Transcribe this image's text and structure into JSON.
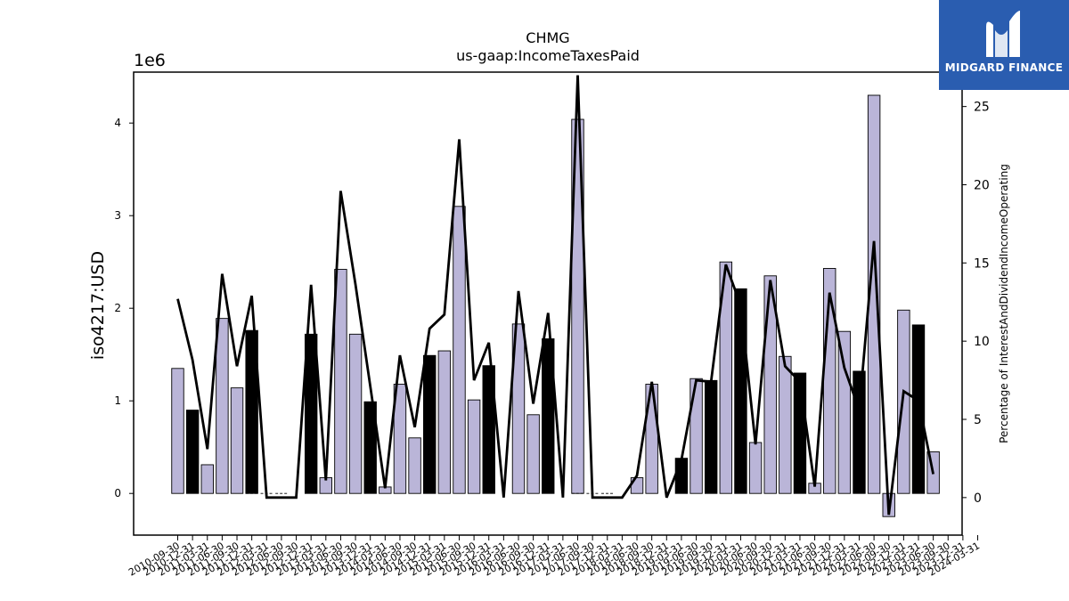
{
  "chart_data": {
    "type": "bar",
    "title": "CHMG",
    "subtitle": "us-gaap:IncomeTaxesPaid",
    "y_multiplier_label": "1e6",
    "ylabel": "iso4217:USD",
    "y2label": "Percentage of InterestAndDividendIncomeOperating",
    "ylim": [
      -450000,
      4550000
    ],
    "y_ticks": [
      0,
      1000000,
      2000000,
      3000000,
      4000000
    ],
    "y_tick_labels": [
      "0",
      "1",
      "2",
      "3",
      "4"
    ],
    "y2lim": [
      -2.4,
      27.2
    ],
    "y2_ticks": [
      0,
      5,
      10,
      15,
      20,
      25
    ],
    "grid": false,
    "categories": [
      "2010-09-30",
      "2010-12-31",
      "2011-03-31",
      "2011-06-30",
      "2011-09-30",
      "2011-12-31",
      "2012-03-31",
      "2012-06-30",
      "2012-09-30",
      "2012-12-31",
      "2013-03-31",
      "2013-06-30",
      "2013-09-30",
      "2013-12-31",
      "2014-03-31",
      "2014-06-30",
      "2014-09-30",
      "2014-12-31",
      "2015-03-31",
      "2015-06-30",
      "2015-09-30",
      "2015-12-31",
      "2016-03-31",
      "2016-06-30",
      "2016-09-30",
      "2016-12-31",
      "2017-03-31",
      "2017-06-30",
      "2017-09-30",
      "2017-12-31",
      "2018-03-31",
      "2018-06-30",
      "2018-09-30",
      "2018-12-31",
      "2019-03-31",
      "2019-06-30",
      "2019-09-30",
      "2019-12-31",
      "2020-03-31",
      "2020-06-30",
      "2020-09-30",
      "2020-12-31",
      "2021-03-31",
      "2021-06-30",
      "2021-09-30",
      "2021-12-31",
      "2022-03-31",
      "2022-06-30",
      "2022-09-30",
      "2022-12-31",
      "2023-03-31",
      "2023-06-30",
      "2023-09-30",
      "2023-12-31",
      "2024-03-31"
    ],
    "x_tick_labels_shown": [
      "2010-09-30",
      "2010-12-31",
      "2011-03-31",
      "2011-06-30",
      "2011-09-30",
      "2011-12-31",
      "2012-03-31",
      "2012-06-30",
      "2012-09-30",
      "2012-12-31",
      "2013-03-31",
      "2013-06-30",
      "2013-09-30",
      "2013-12-31",
      "2014-03-31",
      "2014-06-30",
      "2014-09-30",
      "2014-12-31",
      "2015-03-31",
      "2015-06-30",
      "2015-09-30",
      "2015-12-31",
      "2016-03-31",
      "2016-06-30",
      "2016-09-30",
      "2016-12-31",
      "2017-03-31",
      "2017-06-30",
      "2017-09-30",
      "2017-12-31",
      "2018-03-31",
      "2018-06-30",
      "2018-09-30",
      "2018-12-31",
      "2019-03-31",
      "2019-06-30",
      "2019-09-30",
      "2019-12-31",
      "2020-03-31",
      "2020-06-30",
      "2020-09-30",
      "2020-12-31",
      "2021-03-31",
      "2021-06-30",
      "2021-09-30",
      "2021-12-31",
      "2022-03-31",
      "2022-06-30",
      "2022-09-30",
      "2022-12-31",
      "2023-03-31",
      "2023-06-30",
      "2023-09-30",
      "2023-12-31",
      "2024-03-31"
    ],
    "series": [
      {
        "axis": "left",
        "kind": "bar",
        "values": [
          1350000,
          900000,
          310000,
          1890000,
          1140000,
          1760000,
          0,
          0,
          0,
          1720000,
          170000,
          2420000,
          1720000,
          990000,
          70000,
          1180000,
          600000,
          1490000,
          1540000,
          3100000,
          1010000,
          1380000,
          0,
          1830000,
          850000,
          1670000,
          0,
          4040000,
          0,
          0,
          0,
          170000,
          1180000,
          0,
          380000,
          1240000,
          1220000,
          2500000,
          2210000,
          550000,
          2350000,
          1480000,
          1300000,
          110000,
          2430000,
          1750000,
          1320000,
          4300000,
          -250000,
          1980000,
          1820000,
          450000,
          0,
          0,
          0
        ],
        "bar_colors": [
          "#bab5d8",
          "#000000",
          "#bab5d8",
          "#bab5d8",
          "#bab5d8",
          "#000000",
          "#bab5d8",
          "#bab5d8",
          "#bab5d8",
          "#000000",
          "#bab5d8",
          "#bab5d8",
          "#bab5d8",
          "#000000",
          "#bab5d8",
          "#bab5d8",
          "#bab5d8",
          "#000000",
          "#bab5d8",
          "#bab5d8",
          "#bab5d8",
          "#000000",
          "#bab5d8",
          "#bab5d8",
          "#bab5d8",
          "#000000",
          "#bab5d8",
          "#bab5d8",
          "#bab5d8",
          "#000000",
          "#bab5d8",
          "#bab5d8",
          "#bab5d8",
          "#000000",
          "#000000",
          "#bab5d8",
          "#000000",
          "#bab5d8",
          "#000000",
          "#bab5d8",
          "#bab5d8",
          "#bab5d8",
          "#000000",
          "#bab5d8",
          "#bab5d8",
          "#bab5d8",
          "#000000",
          "#bab5d8",
          "#bab5d8",
          "#bab5d8",
          "#000000",
          "#bab5d8",
          "#bab5d8",
          "#bab5d8",
          "#bab5d8"
        ]
      },
      {
        "axis": "right",
        "kind": "line",
        "color": "#000000",
        "values": [
          12.7,
          8.8,
          3.1,
          14.3,
          8.4,
          12.9,
          0,
          0,
          0,
          13.6,
          1.1,
          19.6,
          13.6,
          7.1,
          0.6,
          9.1,
          4.5,
          10.8,
          11.7,
          22.9,
          7.5,
          9.9,
          0,
          13.2,
          6.0,
          11.8,
          0,
          27.0,
          0,
          0,
          0,
          1.4,
          7.4,
          0,
          2.4,
          7.5,
          7.4,
          14.9,
          12.3,
          3.4,
          13.9,
          8.4,
          7.4,
          0.7,
          13.1,
          8.3,
          5.6,
          16.4,
          -1.1,
          6.8,
          6.2,
          1.5,
          null,
          null,
          null
        ]
      }
    ],
    "dashed_zero_line_categories": [
      "2011-12-31",
      "2012-03-31",
      "2012-06-30",
      "2017-06-30",
      "2017-09-30",
      "2017-12-31"
    ]
  },
  "logo": {
    "text": "MIDGARD FINANCE",
    "mark": "M-monogram",
    "background": "#2a5db0"
  }
}
